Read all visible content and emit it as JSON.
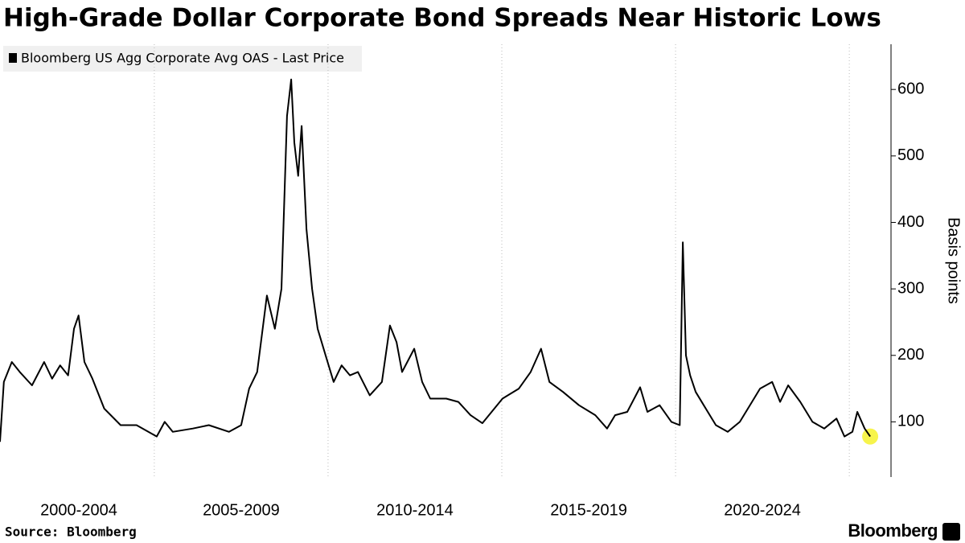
{
  "chart_data": {
    "type": "line",
    "title": "High-Grade Dollar Corporate Bond Spreads Near Historic Lows",
    "y_label": "Basis points",
    "source": "Source: Bloomberg",
    "brand": "Bloomberg",
    "series": [
      {
        "name": "Bloomberg US Agg Corporate Avg OAS - Last Price",
        "color": "#000000",
        "x": [
          2000.56,
          2000.67,
          2000.9,
          2001.13,
          2001.48,
          2001.83,
          2002.06,
          2002.29,
          2002.52,
          2002.69,
          2002.82,
          2002.99,
          2003.22,
          2003.56,
          2004.03,
          2004.49,
          2005.07,
          2005.3,
          2005.53,
          2006.11,
          2006.57,
          2007.15,
          2007.5,
          2007.73,
          2007.96,
          2008.24,
          2008.47,
          2008.66,
          2008.82,
          2008.94,
          2009.03,
          2009.14,
          2009.24,
          2009.38,
          2009.54,
          2009.7,
          2009.93,
          2010.16,
          2010.39,
          2010.63,
          2010.86,
          2011.2,
          2011.55,
          2011.78,
          2011.97,
          2012.13,
          2012.48,
          2012.71,
          2012.94,
          2013.4,
          2013.75,
          2014.1,
          2014.44,
          2015.02,
          2015.49,
          2015.83,
          2016.13,
          2016.37,
          2016.76,
          2017.22,
          2017.69,
          2018.03,
          2018.26,
          2018.61,
          2018.98,
          2019.19,
          2019.54,
          2019.88,
          2020.12,
          2020.21,
          2020.3,
          2020.42,
          2020.58,
          2020.81,
          2021.16,
          2021.5,
          2021.85,
          2022.2,
          2022.43,
          2022.78,
          2023.01,
          2023.24,
          2023.59,
          2023.94,
          2024.28,
          2024.63,
          2024.86,
          2025.09,
          2025.23,
          2025.44,
          2025.6
        ],
        "values": [
          70,
          160,
          190,
          175,
          155,
          190,
          165,
          185,
          170,
          240,
          260,
          190,
          165,
          120,
          95,
          95,
          78,
          100,
          85,
          90,
          95,
          85,
          95,
          150,
          175,
          290,
          240,
          300,
          560,
          615,
          520,
          470,
          545,
          390,
          300,
          240,
          200,
          160,
          185,
          170,
          175,
          140,
          160,
          245,
          220,
          175,
          210,
          160,
          135,
          135,
          130,
          110,
          98,
          135,
          150,
          175,
          210,
          160,
          145,
          125,
          110,
          90,
          110,
          115,
          152,
          115,
          125,
          100,
          95,
          370,
          200,
          170,
          145,
          125,
          95,
          85,
          100,
          130,
          150,
          160,
          130,
          155,
          130,
          100,
          90,
          105,
          78,
          85,
          115,
          90,
          78
        ]
      }
    ],
    "xlim": [
      2000.56,
      2026.2
    ],
    "xticks": [
      {
        "value": 2002.5,
        "label": "2000-2004"
      },
      {
        "value": 2007.5,
        "label": "2005-2009"
      },
      {
        "value": 2012.5,
        "label": "2010-2014"
      },
      {
        "value": 2017.5,
        "label": "2015-2019"
      },
      {
        "value": 2022.5,
        "label": "2020-2024"
      }
    ],
    "xgrid": [
      2005,
      2010,
      2015,
      2020,
      2025
    ],
    "ylim": [
      17,
      668
    ],
    "yticks": [
      100,
      200,
      300,
      400,
      500,
      600
    ],
    "highlight_color": "#f3f000"
  }
}
